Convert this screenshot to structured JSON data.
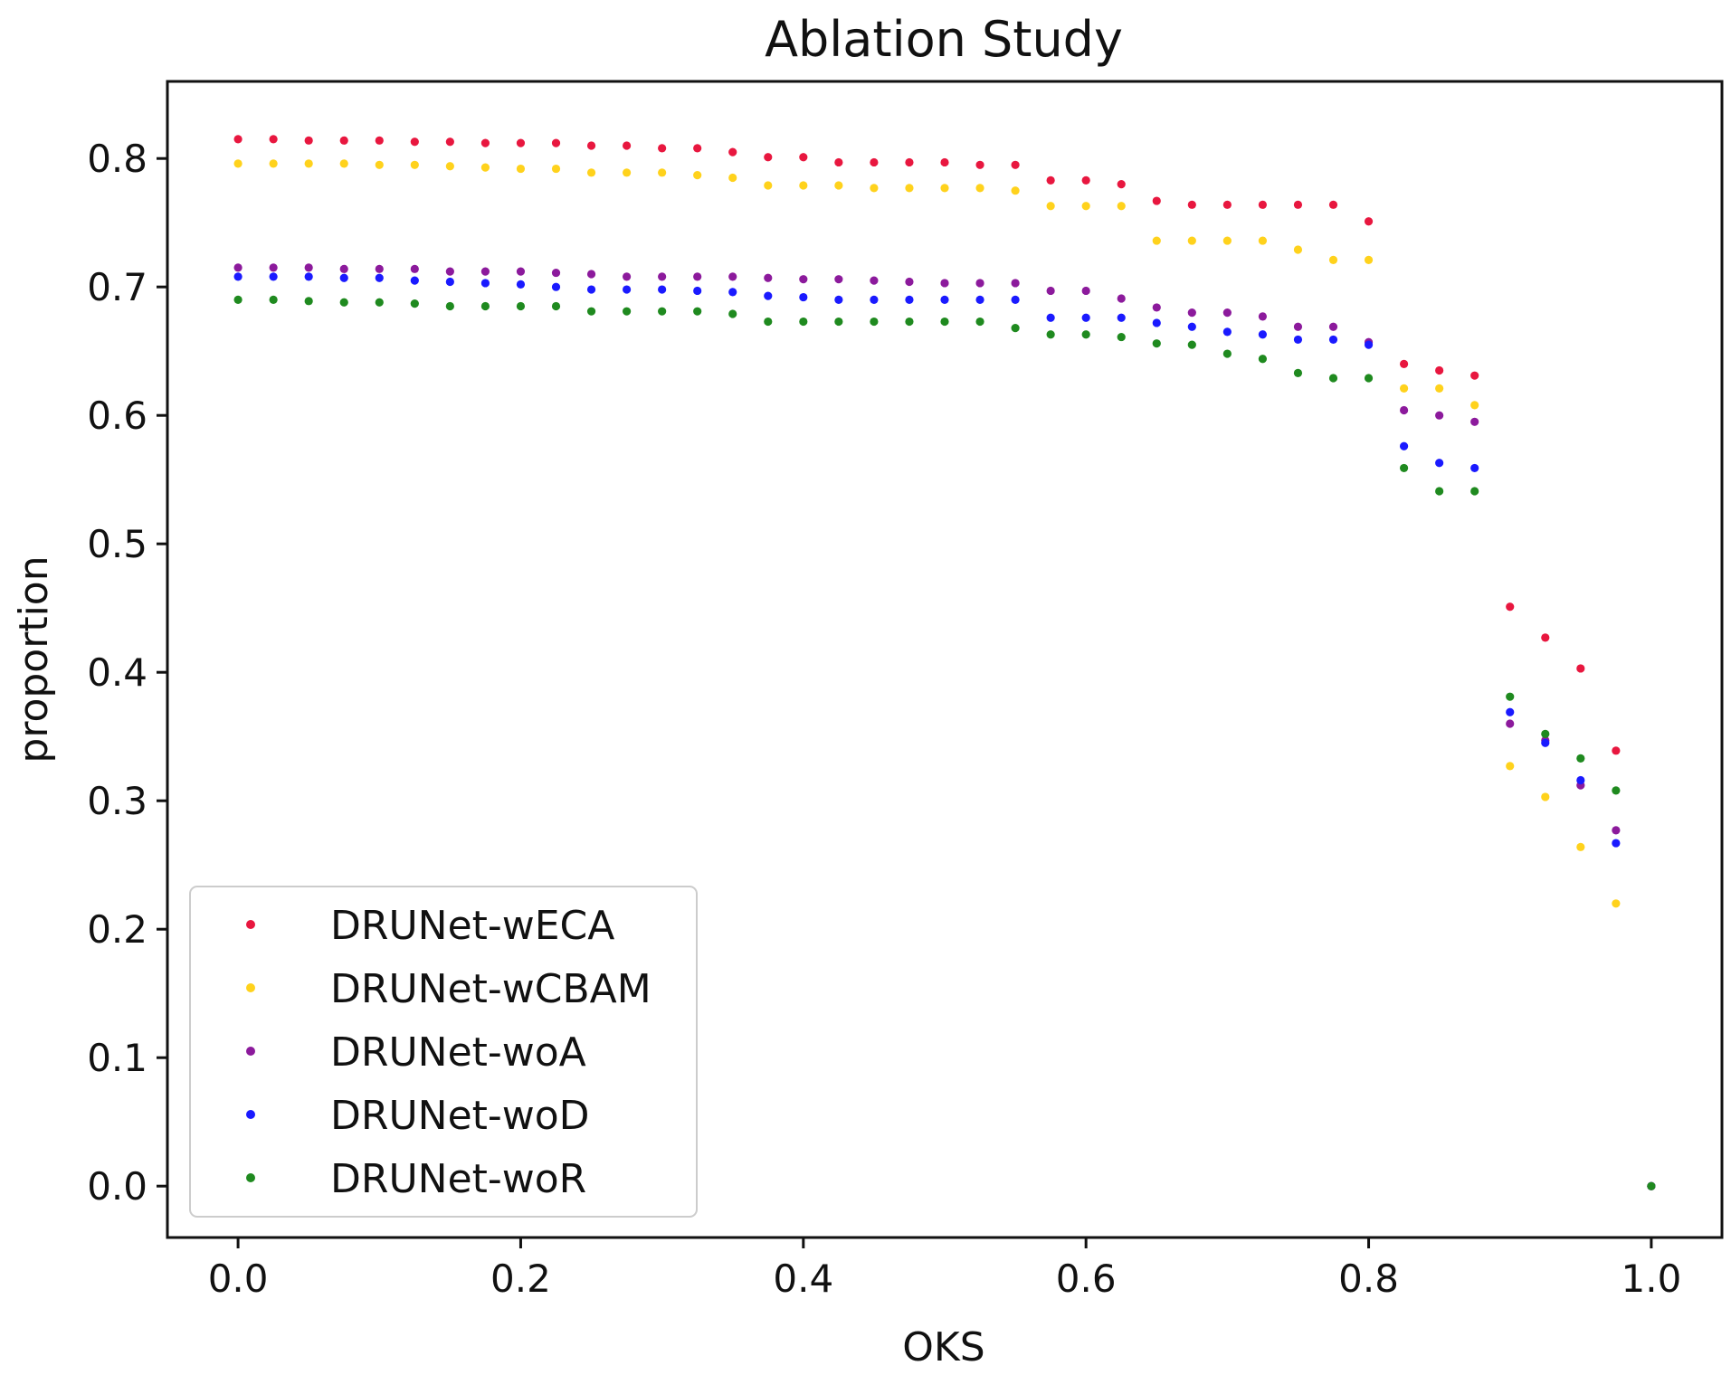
{
  "chart_data": {
    "type": "scatter",
    "title": "Ablation Study",
    "xlabel": "OKS",
    "ylabel": "proportion",
    "xlim": [
      -0.05,
      1.05
    ],
    "ylim": [
      -0.04,
      0.86
    ],
    "xticks": [
      0.0,
      0.2,
      0.4,
      0.6,
      0.8,
      1.0
    ],
    "xtick_labels": [
      "0.0",
      "0.2",
      "0.4",
      "0.6",
      "0.8",
      "1.0"
    ],
    "yticks": [
      0.0,
      0.1,
      0.2,
      0.3,
      0.4,
      0.5,
      0.6,
      0.7,
      0.8
    ],
    "ytick_labels": [
      "0.0",
      "0.1",
      "0.2",
      "0.3",
      "0.4",
      "0.5",
      "0.6",
      "0.7",
      "0.8"
    ],
    "grid": false,
    "legend_position": "lower-left",
    "x": [
      0.0,
      0.025,
      0.05,
      0.075,
      0.1,
      0.125,
      0.15,
      0.175,
      0.2,
      0.225,
      0.25,
      0.275,
      0.3,
      0.325,
      0.35,
      0.375,
      0.4,
      0.425,
      0.45,
      0.475,
      0.5,
      0.525,
      0.55,
      0.575,
      0.6,
      0.625,
      0.65,
      0.675,
      0.7,
      0.725,
      0.75,
      0.775,
      0.8,
      0.825,
      0.85,
      0.875,
      0.9,
      0.925,
      0.95,
      0.975,
      1.0
    ],
    "series": [
      {
        "name": "DRUNet-wECA",
        "color": "#e8173f",
        "values": [
          0.815,
          0.815,
          0.814,
          0.814,
          0.814,
          0.813,
          0.813,
          0.812,
          0.812,
          0.812,
          0.81,
          0.81,
          0.808,
          0.808,
          0.805,
          0.801,
          0.801,
          0.797,
          0.797,
          0.797,
          0.797,
          0.795,
          0.795,
          0.783,
          0.783,
          0.78,
          0.767,
          0.764,
          0.764,
          0.764,
          0.764,
          0.764,
          0.751,
          0.64,
          0.635,
          0.631,
          0.451,
          0.427,
          0.403,
          0.339,
          0.0
        ]
      },
      {
        "name": "DRUNet-wCBAM",
        "color": "#ffd21c",
        "values": [
          0.796,
          0.796,
          0.796,
          0.796,
          0.795,
          0.795,
          0.794,
          0.793,
          0.792,
          0.792,
          0.789,
          0.789,
          0.789,
          0.787,
          0.785,
          0.779,
          0.779,
          0.779,
          0.777,
          0.777,
          0.777,
          0.777,
          0.775,
          0.763,
          0.763,
          0.763,
          0.736,
          0.736,
          0.736,
          0.736,
          0.729,
          0.721,
          0.721,
          0.621,
          0.621,
          0.608,
          0.327,
          0.303,
          0.264,
          0.22,
          0.0
        ]
      },
      {
        "name": "DRUNet-woA",
        "color": "#8c1a9c",
        "values": [
          0.715,
          0.715,
          0.715,
          0.714,
          0.714,
          0.714,
          0.712,
          0.712,
          0.712,
          0.711,
          0.71,
          0.708,
          0.708,
          0.708,
          0.708,
          0.707,
          0.706,
          0.706,
          0.705,
          0.704,
          0.703,
          0.703,
          0.703,
          0.697,
          0.697,
          0.691,
          0.684,
          0.68,
          0.68,
          0.677,
          0.669,
          0.669,
          0.657,
          0.604,
          0.6,
          0.595,
          0.36,
          0.347,
          0.312,
          0.277,
          0.0
        ]
      },
      {
        "name": "DRUNet-woD",
        "color": "#1a1aff",
        "values": [
          0.708,
          0.708,
          0.708,
          0.707,
          0.707,
          0.705,
          0.704,
          0.703,
          0.702,
          0.7,
          0.698,
          0.698,
          0.698,
          0.697,
          0.696,
          0.693,
          0.692,
          0.69,
          0.69,
          0.69,
          0.69,
          0.69,
          0.69,
          0.676,
          0.676,
          0.676,
          0.672,
          0.669,
          0.665,
          0.663,
          0.659,
          0.659,
          0.655,
          0.576,
          0.563,
          0.559,
          0.369,
          0.345,
          0.316,
          0.267,
          0.0
        ]
      },
      {
        "name": "DRUNet-woR",
        "color": "#1f8a1f",
        "values": [
          0.69,
          0.69,
          0.689,
          0.688,
          0.688,
          0.687,
          0.685,
          0.685,
          0.685,
          0.685,
          0.681,
          0.681,
          0.681,
          0.681,
          0.679,
          0.673,
          0.673,
          0.673,
          0.673,
          0.673,
          0.673,
          0.673,
          0.668,
          0.663,
          0.663,
          0.661,
          0.656,
          0.655,
          0.648,
          0.644,
          0.633,
          0.629,
          0.629,
          0.559,
          0.541,
          0.541,
          0.381,
          0.352,
          0.333,
          0.308,
          0.0
        ]
      }
    ]
  }
}
